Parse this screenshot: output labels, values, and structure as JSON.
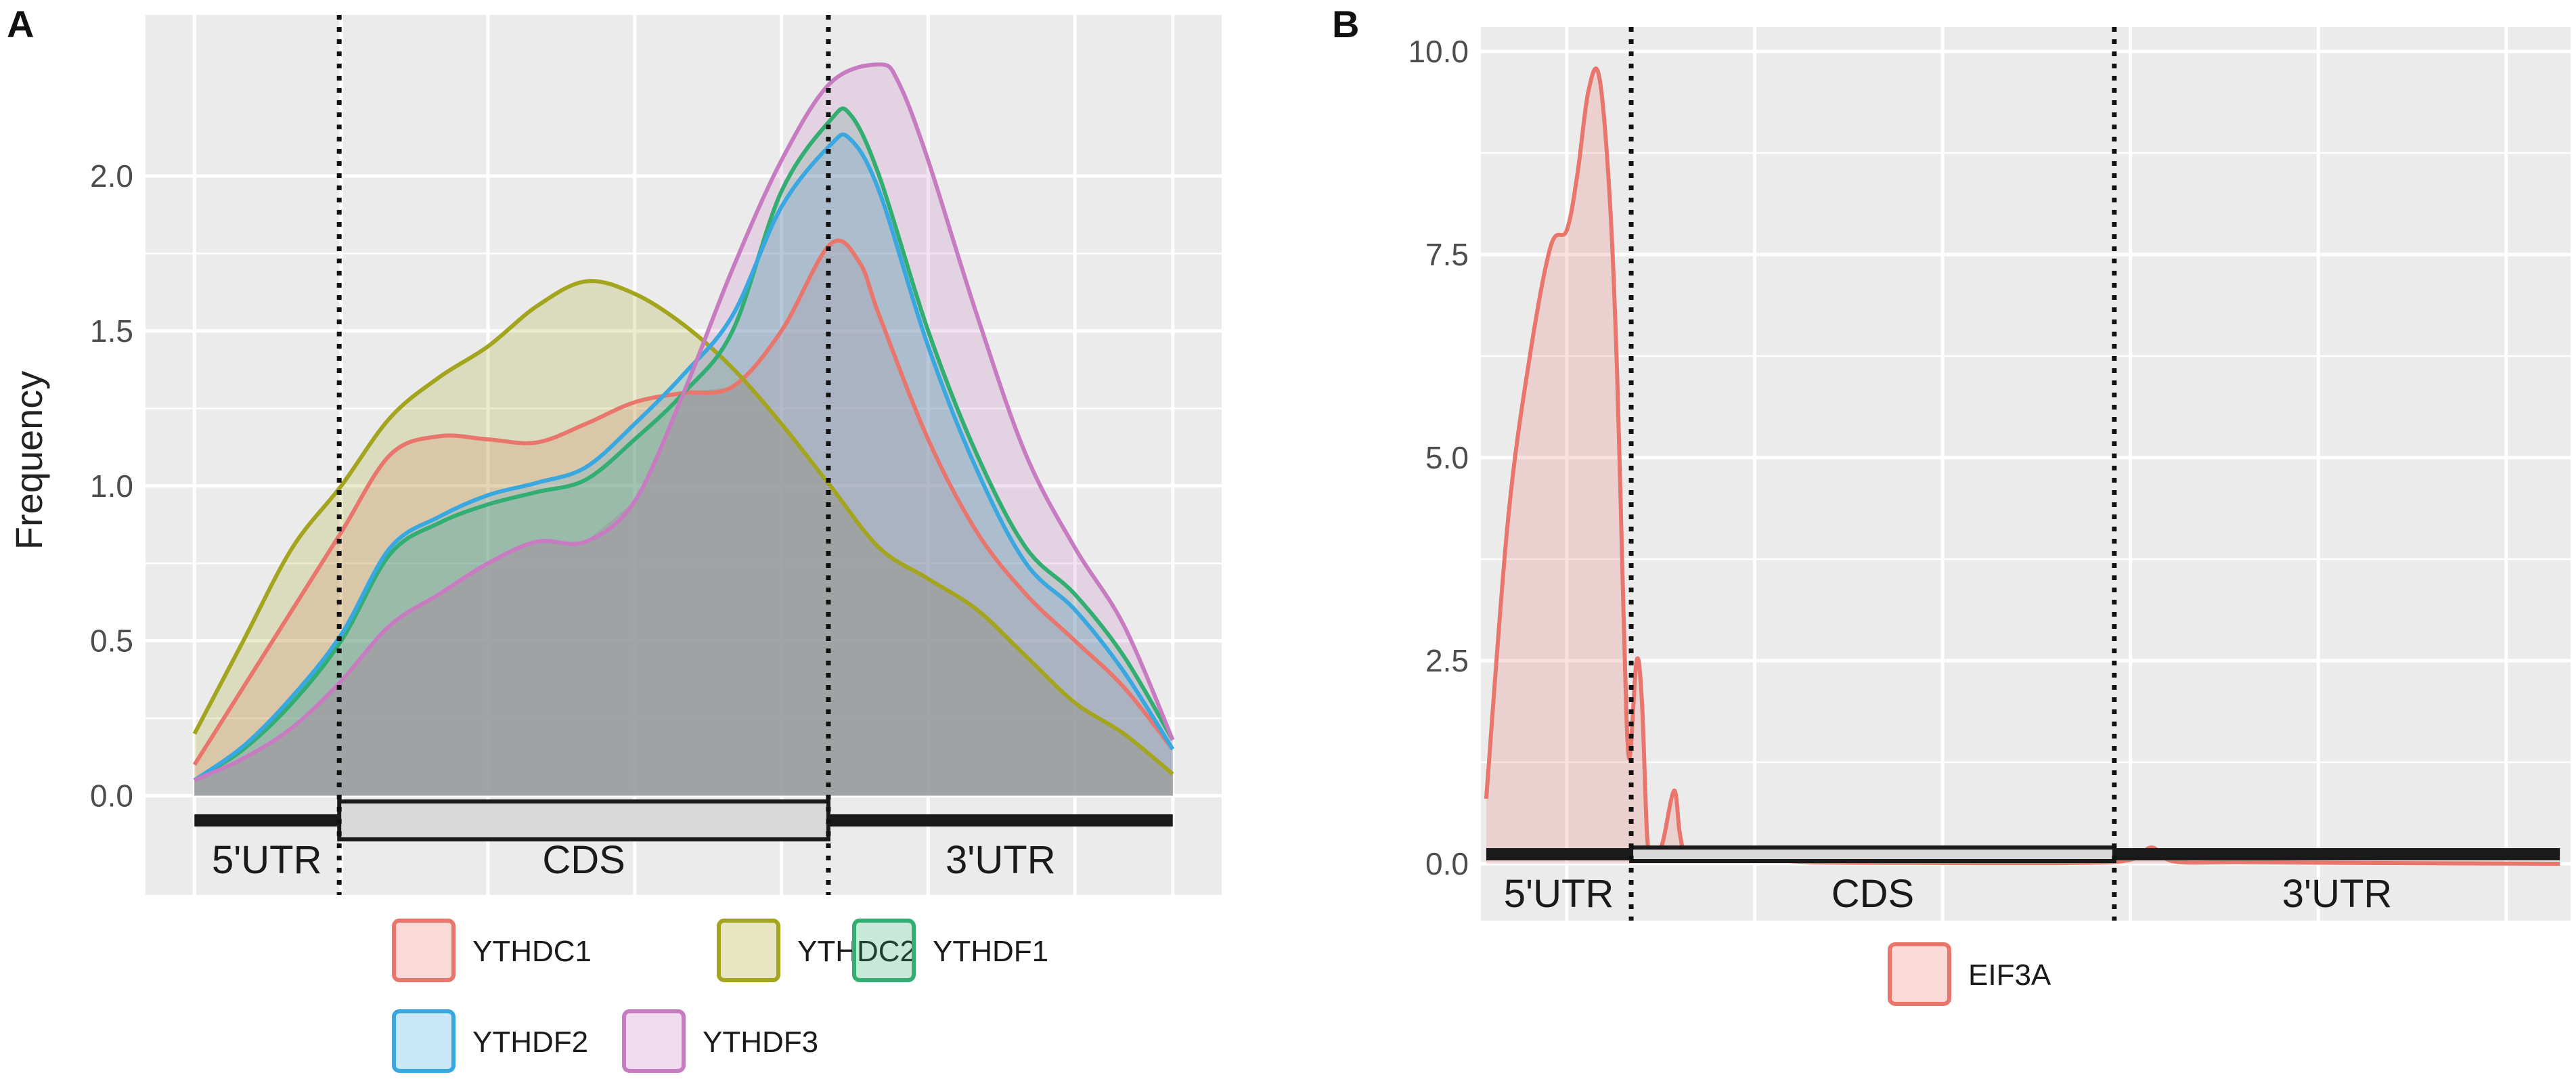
{
  "chart_data": [
    {
      "type": "area",
      "panel_label": "A",
      "ylabel": "Frequency",
      "xlabel": "",
      "ylim": [
        -0.32,
        2.52
      ],
      "xlim": [
        -0.05,
        1.05
      ],
      "y_ticks": [
        "0.0",
        "0.5",
        "1.0",
        "1.5",
        "2.0"
      ],
      "y_tick_values": [
        0,
        0.5,
        1.0,
        1.5,
        2.0
      ],
      "x_gridlines": [
        0,
        0.15,
        0.3,
        0.45,
        0.6,
        0.75,
        0.9,
        1.0
      ],
      "region_boundaries": [
        0.148,
        0.648
      ],
      "regions": [
        "5'UTR",
        "CDS",
        "3'UTR"
      ],
      "grid": true,
      "legend_position": "bottom",
      "series": [
        {
          "name": "YTHDC1",
          "color": "#E8766C",
          "x": [
            0,
            0.05,
            0.1,
            0.15,
            0.2,
            0.25,
            0.3,
            0.35,
            0.4,
            0.45,
            0.5,
            0.55,
            0.6,
            0.65,
            0.68,
            0.7,
            0.75,
            0.8,
            0.85,
            0.9,
            0.95,
            1.0
          ],
          "y": [
            0.1,
            0.35,
            0.6,
            0.85,
            1.1,
            1.16,
            1.15,
            1.14,
            1.2,
            1.27,
            1.3,
            1.32,
            1.5,
            1.78,
            1.72,
            1.55,
            1.15,
            0.85,
            0.65,
            0.5,
            0.35,
            0.15
          ]
        },
        {
          "name": "YTHDC2",
          "color": "#A3A51E",
          "x": [
            0,
            0.05,
            0.1,
            0.15,
            0.2,
            0.25,
            0.3,
            0.35,
            0.4,
            0.45,
            0.5,
            0.55,
            0.6,
            0.65,
            0.7,
            0.75,
            0.8,
            0.85,
            0.9,
            0.95,
            1.0
          ],
          "y": [
            0.2,
            0.5,
            0.8,
            1.0,
            1.22,
            1.35,
            1.45,
            1.58,
            1.66,
            1.62,
            1.52,
            1.38,
            1.2,
            1.0,
            0.8,
            0.7,
            0.6,
            0.45,
            0.3,
            0.2,
            0.07
          ]
        },
        {
          "name": "YTHDF1",
          "color": "#33AE72",
          "x": [
            0,
            0.05,
            0.1,
            0.15,
            0.2,
            0.25,
            0.3,
            0.35,
            0.4,
            0.45,
            0.5,
            0.55,
            0.6,
            0.65,
            0.67,
            0.7,
            0.75,
            0.8,
            0.85,
            0.9,
            0.95,
            1.0
          ],
          "y": [
            0.05,
            0.15,
            0.3,
            0.5,
            0.78,
            0.88,
            0.94,
            0.98,
            1.02,
            1.15,
            1.3,
            1.5,
            1.95,
            2.18,
            2.2,
            2.0,
            1.5,
            1.1,
            0.8,
            0.65,
            0.45,
            0.18
          ]
        },
        {
          "name": "YTHDF2",
          "color": "#3AA8E0",
          "x": [
            0,
            0.05,
            0.1,
            0.15,
            0.2,
            0.25,
            0.3,
            0.35,
            0.4,
            0.45,
            0.5,
            0.55,
            0.6,
            0.65,
            0.67,
            0.7,
            0.75,
            0.8,
            0.85,
            0.9,
            0.95,
            1.0
          ],
          "y": [
            0.05,
            0.16,
            0.32,
            0.52,
            0.8,
            0.9,
            0.97,
            1.01,
            1.06,
            1.2,
            1.36,
            1.55,
            1.9,
            2.1,
            2.12,
            1.95,
            1.45,
            1.05,
            0.75,
            0.6,
            0.4,
            0.15
          ]
        },
        {
          "name": "YTHDF3",
          "color": "#C77CC1",
          "x": [
            0,
            0.05,
            0.1,
            0.15,
            0.2,
            0.25,
            0.3,
            0.35,
            0.4,
            0.45,
            0.5,
            0.55,
            0.6,
            0.65,
            0.7,
            0.72,
            0.75,
            0.8,
            0.85,
            0.9,
            0.95,
            1.0
          ],
          "y": [
            0.05,
            0.12,
            0.22,
            0.37,
            0.55,
            0.65,
            0.75,
            0.82,
            0.82,
            0.95,
            1.3,
            1.7,
            2.05,
            2.3,
            2.36,
            2.3,
            2.05,
            1.55,
            1.1,
            0.8,
            0.55,
            0.18
          ]
        }
      ],
      "fill_opacity": 0.22,
      "overlay_fill": "#9a9a9a",
      "overlay_opacity": 0.55
    },
    {
      "type": "area",
      "panel_label": "B",
      "ylabel": "",
      "xlabel": "",
      "ylim": [
        -0.7,
        10.3
      ],
      "xlim": [
        -0.005,
        1.01
      ],
      "y_ticks": [
        "0.0",
        "2.5",
        "5.0",
        "7.5",
        "10.0"
      ],
      "y_tick_values": [
        0,
        2.5,
        5.0,
        7.5,
        10.0
      ],
      "x_gridlines": [
        0.075,
        0.25,
        0.425,
        0.6,
        0.775,
        0.95
      ],
      "region_boundaries": [
        0.135,
        0.585
      ],
      "regions": [
        "5'UTR",
        "CDS",
        "3'UTR"
      ],
      "grid": true,
      "legend_position": "bottom",
      "series": [
        {
          "name": "EIF3A",
          "color": "#E8766C",
          "x": [
            0,
            0.02,
            0.04,
            0.06,
            0.075,
            0.085,
            0.095,
            0.105,
            0.115,
            0.122,
            0.128,
            0.133,
            0.14,
            0.145,
            0.15,
            0.155,
            0.16,
            0.165,
            0.175,
            0.18,
            0.185,
            0.19,
            0.2,
            0.21,
            0.22,
            0.23,
            0.24,
            0.25,
            0.26,
            0.3,
            0.4,
            0.55,
            0.6,
            0.62,
            0.64,
            0.7,
            0.8,
            1.0
          ],
          "y": [
            0.8,
            4.2,
            6.2,
            7.6,
            7.8,
            8.5,
            9.5,
            9.7,
            8.2,
            6.0,
            3.0,
            1.3,
            2.5,
            2.0,
            0.3,
            0.15,
            0.12,
            0.3,
            0.9,
            0.4,
            0.08,
            0.08,
            0.15,
            0.05,
            0.12,
            0.05,
            0.1,
            0.05,
            0.06,
            0.02,
            0.01,
            0.01,
            0.05,
            0.2,
            0.03,
            0.02,
            0.01,
            0.0
          ]
        }
      ],
      "fill_opacity": 0.22
    }
  ]
}
